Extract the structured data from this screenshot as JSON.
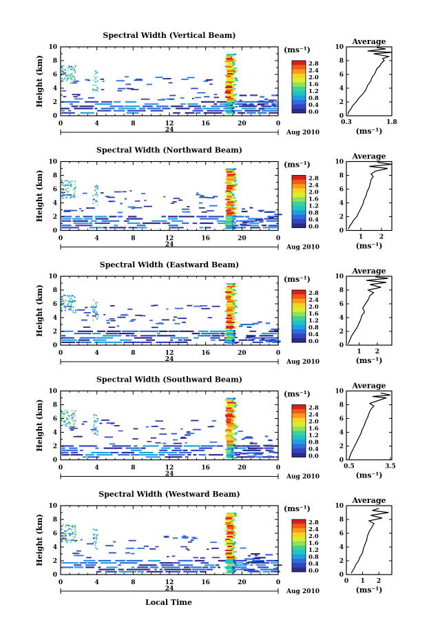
{
  "figure": {
    "xlabel": "Local Time",
    "date_label": "Aug 2010",
    "colorbar_unit": "(ms⁻¹)",
    "colorbar_ticks": [
      "2.8",
      "2.4",
      "2.0",
      "1.6",
      "1.2",
      "0.8",
      "0.4",
      "0.0"
    ],
    "colorbar_colors": [
      "#d62020",
      "#f45a14",
      "#f89a1a",
      "#f5d423",
      "#d9ef2a",
      "#8fe05a",
      "#3fd196",
      "#1ec3c4",
      "#1f9fe0",
      "#2c6fdc",
      "#3445c4",
      "#2d2b8a"
    ],
    "mid_day_label": "24",
    "average_title": "Average",
    "average_unit": "(ms⁻¹)"
  },
  "chart_data": [
    {
      "type": "heatmap",
      "title": "Spectral Width (Vertical Beam)",
      "ylabel": "Height (km)",
      "xlabel": "Local Time",
      "x_ticks": [
        "0",
        "4",
        "8",
        "12",
        "16",
        "20",
        "0"
      ],
      "y_ticks": [
        "0",
        "2",
        "4",
        "6",
        "8",
        "10"
      ],
      "xlim": [
        0,
        24
      ],
      "ylim": [
        0,
        10
      ],
      "colorbar": {
        "label": "(ms⁻¹)",
        "range": [
          0.0,
          3.0
        ],
        "ticks": [
          "2.8",
          "2.4",
          "2.0",
          "1.6",
          "1.2",
          "0.8",
          "0.4",
          "0.0"
        ]
      },
      "average": {
        "title": "Average",
        "xlabel": "(ms⁻¹)",
        "x_ticks": [
          "0.3",
          "1.8"
        ],
        "xlim": [
          0.3,
          1.8
        ],
        "y_ticks": [
          "0",
          "2",
          "4",
          "6",
          "8",
          "10"
        ],
        "profile": [
          [
            0.35,
            0.2
          ],
          [
            0.38,
            0.6
          ],
          [
            0.45,
            1.0
          ],
          [
            0.5,
            1.4
          ],
          [
            0.62,
            2.0
          ],
          [
            0.72,
            2.6
          ],
          [
            0.85,
            3.2
          ],
          [
            0.95,
            3.8
          ],
          [
            1.0,
            4.4
          ],
          [
            1.1,
            5.0
          ],
          [
            1.15,
            5.6
          ],
          [
            1.25,
            6.2
          ],
          [
            1.3,
            6.8
          ],
          [
            1.4,
            7.2
          ],
          [
            1.45,
            7.6
          ],
          [
            1.55,
            8.0
          ],
          [
            1.5,
            8.3
          ],
          [
            1.7,
            8.6
          ],
          [
            1.2,
            9.0
          ],
          [
            1.8,
            9.2
          ],
          [
            1.0,
            9.4
          ],
          [
            1.6,
            9.7
          ],
          [
            1.3,
            9.9
          ]
        ]
      },
      "date_label": "Aug 2010",
      "mid_day_label": "24"
    },
    {
      "type": "heatmap",
      "title": "Spectral Width (Northward Beam)",
      "ylabel": "Height (km)",
      "xlabel": "Local Time",
      "x_ticks": [
        "0",
        "4",
        "8",
        "12",
        "16",
        "20",
        "0"
      ],
      "y_ticks": [
        "0",
        "2",
        "4",
        "6",
        "8",
        "10"
      ],
      "xlim": [
        0,
        24
      ],
      "ylim": [
        0,
        10
      ],
      "colorbar": {
        "label": "(ms⁻¹)",
        "range": [
          0.0,
          3.0
        ],
        "ticks": [
          "2.8",
          "2.4",
          "2.0",
          "1.6",
          "1.2",
          "0.8",
          "0.4",
          "0.0"
        ]
      },
      "average": {
        "title": "Average",
        "xlabel": "(ms⁻¹)",
        "x_ticks": [
          "1",
          "2"
        ],
        "xlim": [
          0.3,
          2.5
        ],
        "y_ticks": [
          "0",
          "2",
          "4",
          "6",
          "8",
          "10"
        ],
        "profile": [
          [
            0.4,
            0.2
          ],
          [
            0.45,
            0.6
          ],
          [
            0.55,
            1.0
          ],
          [
            0.65,
            1.5
          ],
          [
            0.8,
            2.0
          ],
          [
            0.9,
            2.6
          ],
          [
            1.0,
            3.2
          ],
          [
            1.1,
            3.8
          ],
          [
            1.15,
            4.4
          ],
          [
            1.25,
            5.0
          ],
          [
            1.3,
            5.6
          ],
          [
            1.4,
            6.2
          ],
          [
            1.45,
            6.8
          ],
          [
            1.5,
            7.4
          ],
          [
            1.6,
            7.8
          ],
          [
            1.5,
            8.2
          ],
          [
            1.7,
            8.6
          ],
          [
            2.3,
            9.0
          ],
          [
            1.4,
            9.3
          ],
          [
            2.5,
            9.6
          ],
          [
            1.8,
            9.9
          ]
        ]
      },
      "date_label": "Aug 2010",
      "mid_day_label": "24"
    },
    {
      "type": "heatmap",
      "title": "Spectral Width (Eastward Beam)",
      "ylabel": "Height (km)",
      "xlabel": "Local Time",
      "x_ticks": [
        "0",
        "4",
        "8",
        "12",
        "16",
        "20",
        "0"
      ],
      "y_ticks": [
        "0",
        "2",
        "4",
        "6",
        "8",
        "10"
      ],
      "xlim": [
        0,
        24
      ],
      "ylim": [
        0,
        10
      ],
      "colorbar": {
        "label": "(ms⁻¹)",
        "range": [
          0.0,
          3.0
        ],
        "ticks": [
          "2.8",
          "2.4",
          "2.0",
          "1.6",
          "1.2",
          "0.8",
          "0.4",
          "0.0"
        ]
      },
      "average": {
        "title": "Average",
        "xlabel": "(ms⁻¹)",
        "x_ticks": [
          "1",
          "2"
        ],
        "xlim": [
          0.3,
          2.8
        ],
        "y_ticks": [
          "0",
          "2",
          "4",
          "6",
          "8",
          "10"
        ],
        "profile": [
          [
            0.4,
            0.2
          ],
          [
            0.5,
            0.8
          ],
          [
            0.6,
            1.4
          ],
          [
            0.75,
            2.0
          ],
          [
            0.9,
            2.6
          ],
          [
            1.0,
            3.2
          ],
          [
            1.1,
            3.8
          ],
          [
            1.15,
            4.3
          ],
          [
            1.3,
            4.8
          ],
          [
            1.2,
            5.4
          ],
          [
            1.35,
            6.0
          ],
          [
            1.5,
            6.6
          ],
          [
            1.6,
            7.2
          ],
          [
            1.8,
            7.6
          ],
          [
            1.5,
            8.0
          ],
          [
            2.2,
            8.4
          ],
          [
            1.6,
            8.8
          ],
          [
            2.5,
            9.1
          ],
          [
            1.4,
            9.4
          ],
          [
            2.6,
            9.7
          ],
          [
            1.9,
            9.9
          ]
        ]
      },
      "date_label": "Aug 2010",
      "mid_day_label": "24"
    },
    {
      "type": "heatmap",
      "title": "Spectral Width (Southward Beam)",
      "ylabel": "Height (km)",
      "xlabel": "Local Time",
      "x_ticks": [
        "0",
        "4",
        "8",
        "12",
        "16",
        "20",
        "0"
      ],
      "y_ticks": [
        "0",
        "2",
        "4",
        "6",
        "8",
        "10"
      ],
      "xlim": [
        0,
        24
      ],
      "ylim": [
        0,
        10
      ],
      "colorbar": {
        "label": "(ms⁻¹)",
        "range": [
          0.0,
          3.0
        ],
        "ticks": [
          "2.8",
          "2.4",
          "2.0",
          "1.6",
          "1.2",
          "0.8",
          "0.4",
          "0.0"
        ]
      },
      "average": {
        "title": "Average",
        "xlabel": "(ms⁻¹)",
        "x_ticks": [
          "0.5",
          "3.5"
        ],
        "xlim": [
          0.3,
          3.6
        ],
        "y_ticks": [
          "0",
          "2",
          "4",
          "6",
          "8",
          "10"
        ],
        "profile": [
          [
            0.5,
            0.2
          ],
          [
            0.6,
            0.8
          ],
          [
            0.75,
            1.4
          ],
          [
            0.9,
            2.0
          ],
          [
            1.05,
            2.6
          ],
          [
            1.2,
            3.2
          ],
          [
            1.35,
            3.8
          ],
          [
            1.45,
            4.4
          ],
          [
            1.6,
            5.0
          ],
          [
            1.7,
            5.6
          ],
          [
            1.85,
            6.2
          ],
          [
            1.95,
            6.8
          ],
          [
            2.1,
            7.4
          ],
          [
            2.3,
            7.8
          ],
          [
            2.0,
            8.2
          ],
          [
            2.6,
            8.6
          ],
          [
            3.2,
            9.0
          ],
          [
            2.2,
            9.2
          ],
          [
            3.5,
            9.4
          ],
          [
            2.8,
            9.7
          ]
        ]
      },
      "date_label": "Aug 2010",
      "mid_day_label": "24"
    },
    {
      "type": "heatmap",
      "title": "Spectral Width (Westward Beam)",
      "ylabel": "Height (km)",
      "xlabel": "Local Time",
      "x_ticks": [
        "0",
        "4",
        "8",
        "12",
        "16",
        "20",
        "0"
      ],
      "y_ticks": [
        "0",
        "2",
        "4",
        "6",
        "8",
        "10"
      ],
      "xlim": [
        0,
        24
      ],
      "ylim": [
        0,
        10
      ],
      "colorbar": {
        "label": "(ms⁻¹)",
        "range": [
          0.0,
          3.0
        ],
        "ticks": [
          "2.8",
          "2.4",
          "2.0",
          "1.6",
          "1.2",
          "0.8",
          "0.4",
          "0.0"
        ]
      },
      "average": {
        "title": "Average",
        "xlabel": "(ms⁻¹)",
        "x_ticks": [
          "0",
          "1",
          "2"
        ],
        "xlim": [
          0,
          2.8
        ],
        "y_ticks": [
          "0",
          "2",
          "4",
          "6",
          "8",
          "10"
        ],
        "profile": [
          [
            0.3,
            0.2
          ],
          [
            0.4,
            0.6
          ],
          [
            0.5,
            1.0
          ],
          [
            0.6,
            1.5
          ],
          [
            0.75,
            2.0
          ],
          [
            0.85,
            2.6
          ],
          [
            1.0,
            3.2
          ],
          [
            1.05,
            3.8
          ],
          [
            1.15,
            4.4
          ],
          [
            1.25,
            5.0
          ],
          [
            1.3,
            5.6
          ],
          [
            1.4,
            6.2
          ],
          [
            1.55,
            6.8
          ],
          [
            1.7,
            7.4
          ],
          [
            1.4,
            7.8
          ],
          [
            2.2,
            8.2
          ],
          [
            1.5,
            8.6
          ],
          [
            2.6,
            9.0
          ],
          [
            1.6,
            9.3
          ],
          [
            2.0,
            9.6
          ]
        ]
      },
      "date_label": "Aug 2010",
      "mid_day_label": "24"
    }
  ]
}
